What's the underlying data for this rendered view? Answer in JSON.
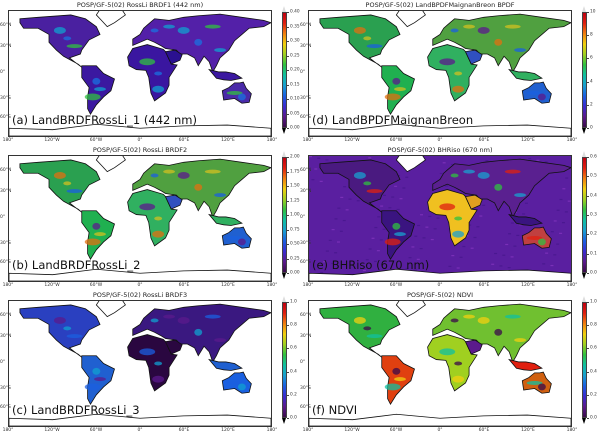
{
  "colors": {
    "rainbow": [
      "#3a0a4a",
      "#5b1a8c",
      "#3a2bd0",
      "#1b5fe0",
      "#1aa0d0",
      "#10c0a0",
      "#30c040",
      "#a0d020",
      "#f0d010",
      "#f08010",
      "#e02010",
      "#c00010"
    ],
    "ocean_violet": "#5a1fa0",
    "land_dark": "#2a0740"
  },
  "panels": [
    {
      "id": "a",
      "title": "POSP/GF-5(02) RossLi BRDF1 (442 nm)",
      "label": "(a) LandBRDFRossLi_1 (442 nm)",
      "ticks": [
        "0.40",
        "0.35",
        "0.30",
        "0.25",
        "0.20",
        "0.15",
        "0.10",
        "0.05",
        "0.00"
      ],
      "ocean": false,
      "scheme": "violet"
    },
    {
      "id": "d",
      "title": "POSP/GF-5(02) LandBPDFMaignanBreon BPDF",
      "label": "(d) LandBPDFMaignanBreon",
      "ticks": [
        "10",
        "8",
        "6",
        "4",
        "2",
        "0"
      ],
      "ocean": false,
      "scheme": "greenmix"
    },
    {
      "id": "b",
      "title": "POSP/GF-5(02) RossLi BRDF2",
      "label": "(b) LandBRDFRossLi_2",
      "ticks": [
        "2.00",
        "1.75",
        "1.50",
        "1.25",
        "1.00",
        "0.75",
        "0.50",
        "0.25",
        "0.00"
      ],
      "ocean": false,
      "scheme": "greenmix"
    },
    {
      "id": "e",
      "title": "POSP/GF-5(02) BHRiso (670 nm)",
      "label": "(e) BHRiso (670 nm)",
      "ticks": [
        "0.6",
        "0.5",
        "0.4",
        "0.3",
        "0.2",
        "0.1",
        "0.0"
      ],
      "ocean": true,
      "scheme": "desert"
    },
    {
      "id": "c",
      "title": "POSP/GF-5(02) RossLi BRDF3",
      "label": "(c) LandBRDFRossLi_3",
      "ticks": [
        "1.0",
        "0.8",
        "0.6",
        "0.4",
        "0.2",
        "0.0"
      ],
      "ocean": false,
      "scheme": "blue"
    },
    {
      "id": "f",
      "title": "POSP/GF-5(02) NDVI",
      "label": "(f) NDVI",
      "ticks": [
        "1.0",
        "0.8",
        "0.6",
        "0.4",
        "0.2",
        "0.0"
      ],
      "ocean": false,
      "scheme": "ndvi"
    }
  ],
  "lat_labels": [
    "60°N",
    "30°N",
    "0°",
    "30°S",
    "60°S"
  ],
  "lon_labels": [
    "180°",
    "120°W",
    "60°W",
    "0°",
    "60°E",
    "120°E",
    "180°"
  ]
}
